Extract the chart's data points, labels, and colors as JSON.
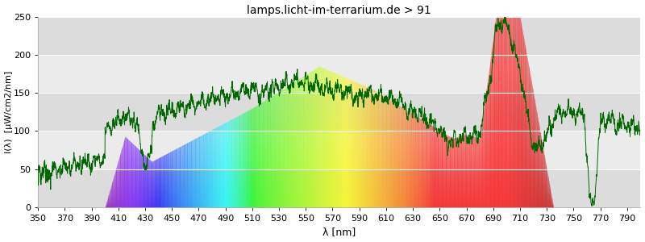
{
  "title": "lamps.licht-im-terrarium.de > 91",
  "xlabel": "λ [nm]",
  "ylabel": "I(λ)  [μW/cm2/nm]",
  "xlim": [
    350,
    800
  ],
  "ylim": [
    0,
    250
  ],
  "yticks": [
    0,
    50,
    100,
    150,
    200,
    250
  ],
  "xticks": [
    350,
    370,
    390,
    410,
    430,
    450,
    470,
    490,
    510,
    530,
    550,
    570,
    590,
    610,
    630,
    650,
    670,
    690,
    710,
    730,
    750,
    770,
    790
  ],
  "spectrum_vis_start": 400,
  "spectrum_vis_end": 735,
  "line_color": "#006600",
  "bg_bands": [
    [
      0,
      50,
      "#dcdcdc"
    ],
    [
      50,
      100,
      "#ebebeb"
    ],
    [
      100,
      150,
      "#dcdcdc"
    ],
    [
      150,
      200,
      "#ebebeb"
    ],
    [
      200,
      250,
      "#dcdcdc"
    ]
  ],
  "title_fontsize": 10,
  "axis_fontsize": 8,
  "figsize": [
    8.0,
    3.0
  ],
  "dpi": 100
}
